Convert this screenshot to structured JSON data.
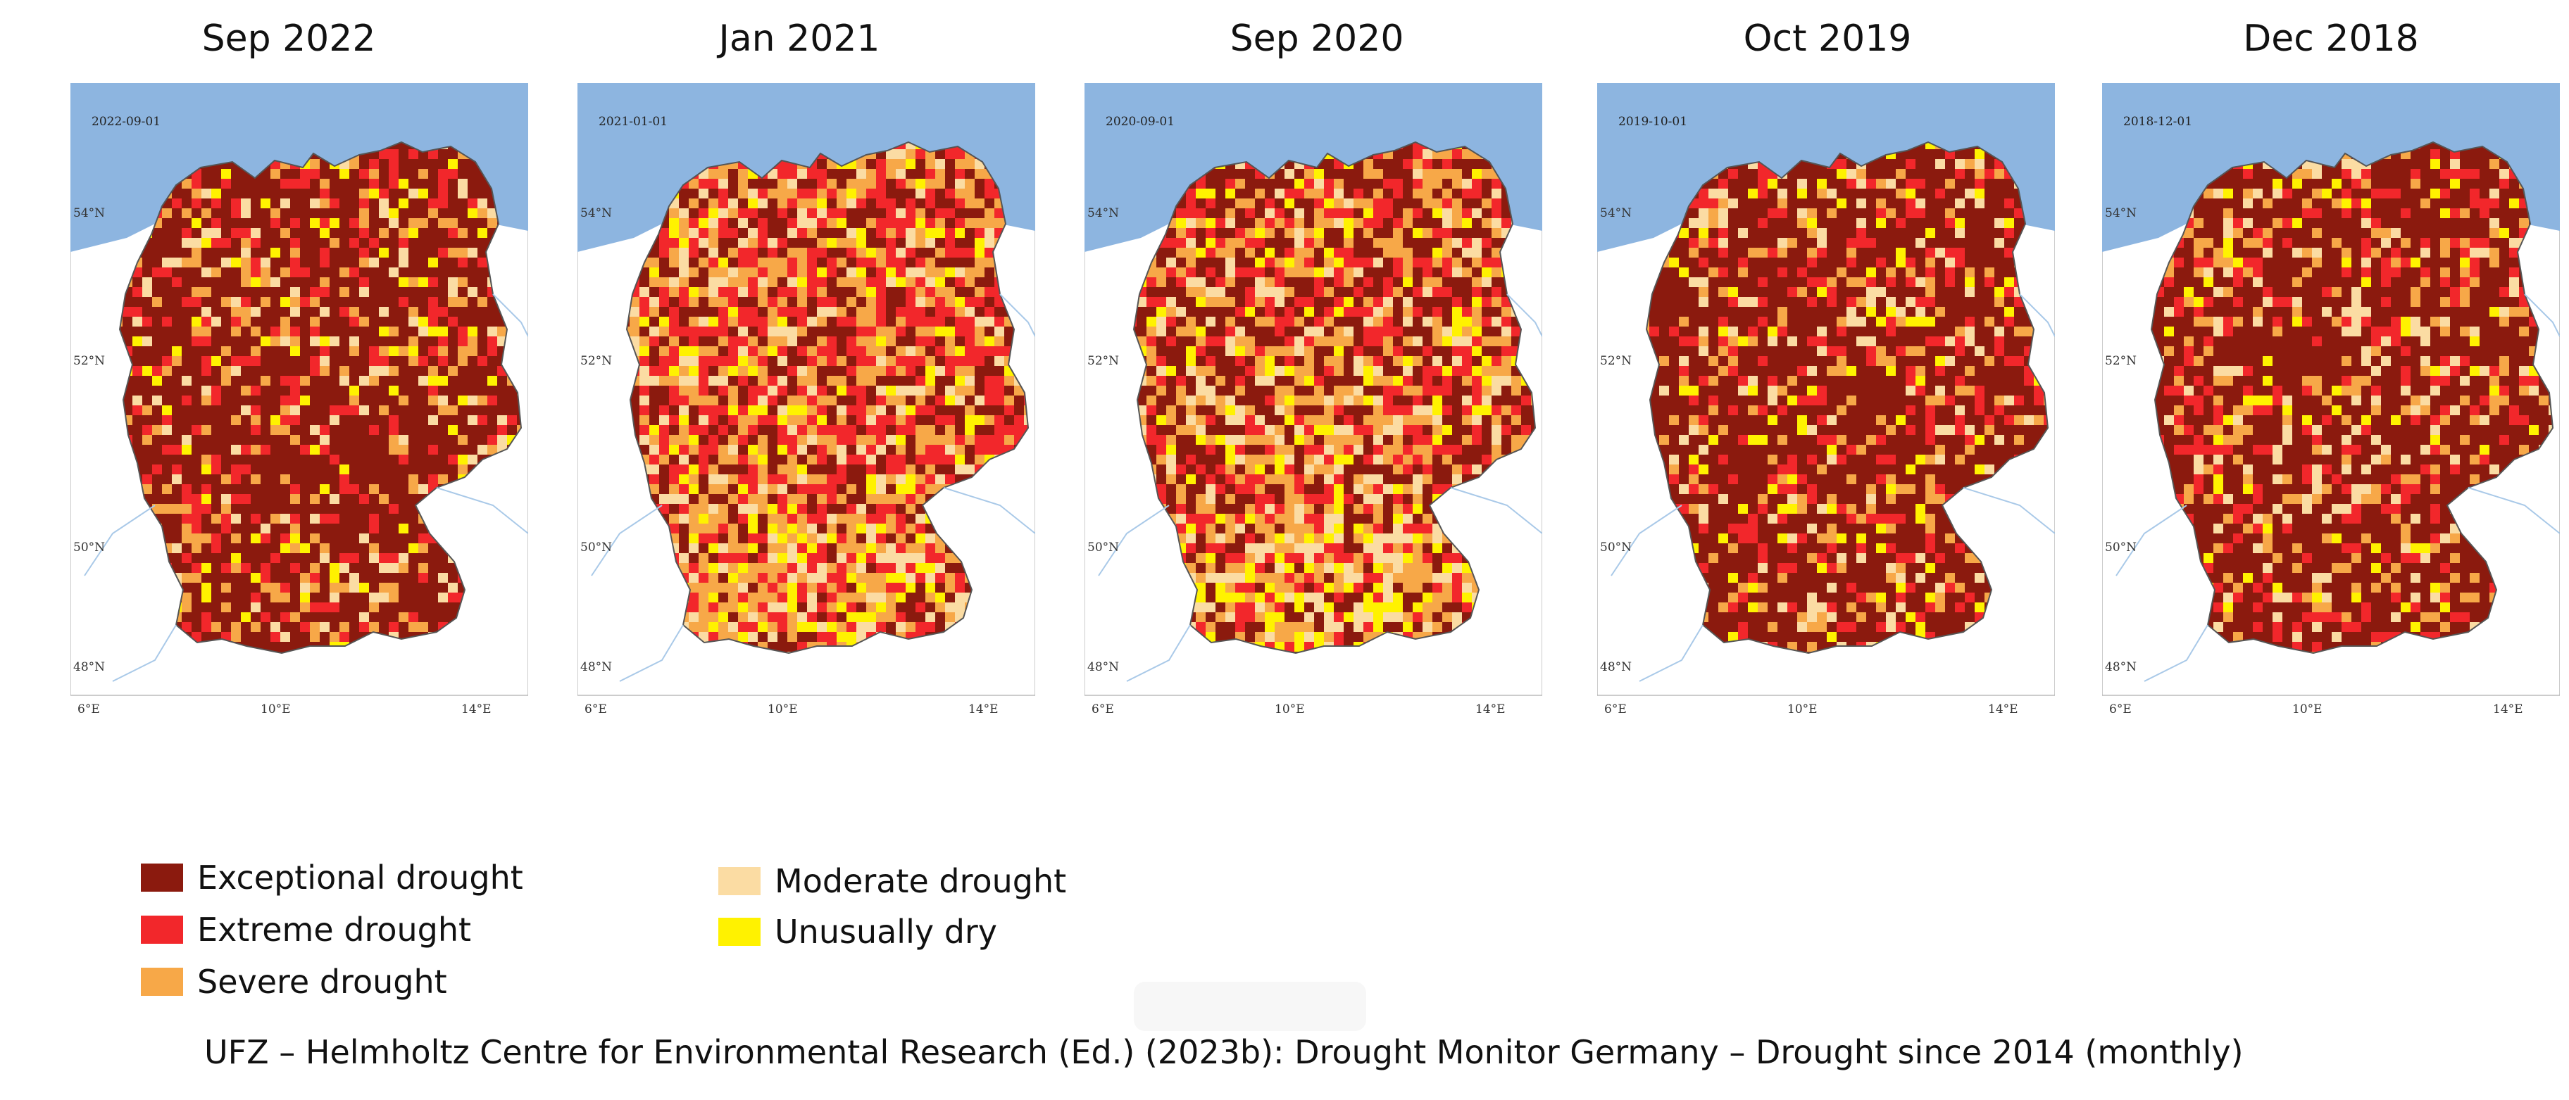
{
  "figure": {
    "panels": [
      {
        "title": "Sep 2022",
        "date_stamp": "2022-09-01",
        "dominant": "exceptional"
      },
      {
        "title": "Jan 2021",
        "date_stamp": "2021-01-01",
        "dominant": "extreme"
      },
      {
        "title": "Sep 2020",
        "date_stamp": "2020-09-01",
        "dominant": "mixed"
      },
      {
        "title": "Oct 2019",
        "date_stamp": "2019-10-01",
        "dominant": "exceptional"
      },
      {
        "title": "Dec 2018",
        "date_stamp": "2018-12-01",
        "dominant": "exceptional"
      }
    ],
    "lat_labels": [
      "54°N",
      "52°N",
      "50°N",
      "48°N"
    ],
    "lon_labels": [
      "6°E",
      "10°E",
      "14°E"
    ]
  },
  "legend": {
    "items": [
      {
        "label": "Exceptional drought",
        "color": "#8b1a0e"
      },
      {
        "label": "Extreme drought",
        "color": "#f2272b"
      },
      {
        "label": "Severe drought",
        "color": "#f7a848"
      },
      {
        "label": "Moderate drought",
        "color": "#fbdca3"
      },
      {
        "label": "Unusually dry",
        "color": "#fff200"
      }
    ]
  },
  "colors": {
    "sea": "#8db5e0",
    "land_outside": "#ffffff",
    "border": "#555555"
  },
  "citation": "UFZ – Helmholtz Centre for Environmental Research (Ed.) (2023b): Drought Monitor Germany – Drought since 2014 (monthly)"
}
